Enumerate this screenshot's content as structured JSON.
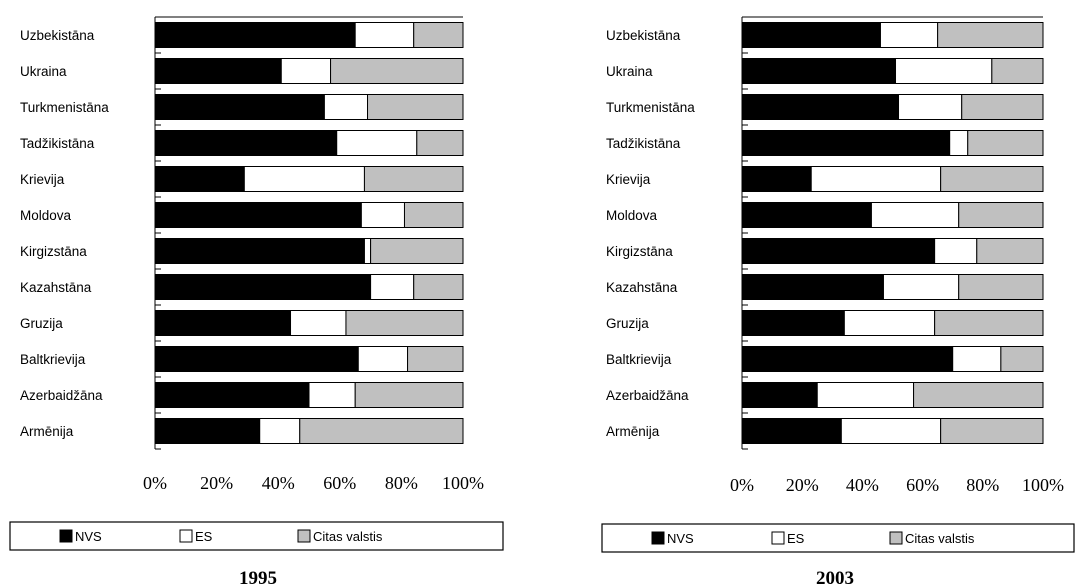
{
  "chart_data": [
    {
      "type": "bar",
      "orientation": "horizontal",
      "stacked": "percent",
      "title": "1995",
      "categories": [
        "Uzbekistāna",
        "Ukraina",
        "Turkmenistāna",
        "Tadžikistāna",
        "Krievija",
        "Moldova",
        "Kirgizstāna",
        "Kazahstāna",
        "Gruzija",
        "Baltkrievija",
        "Azerbaidžāna",
        "Armēnija"
      ],
      "series": [
        {
          "name": "NVS",
          "color": "#000000",
          "values": [
            65,
            41,
            55,
            59,
            29,
            67,
            68,
            70,
            44,
            66,
            50,
            34
          ]
        },
        {
          "name": "ES",
          "color": "#ffffff",
          "values": [
            19,
            16,
            14,
            26,
            39,
            14,
            2,
            14,
            18,
            16,
            15,
            13
          ]
        },
        {
          "name": "Citas valstis",
          "color": "#c0c0c0",
          "values": [
            16,
            43,
            31,
            15,
            32,
            19,
            30,
            16,
            38,
            18,
            35,
            53
          ]
        }
      ],
      "xticks": [
        "0%",
        "20%",
        "40%",
        "60%",
        "80%",
        "100%"
      ],
      "xlim": [
        0,
        100
      ],
      "legend_position": "bottom"
    },
    {
      "type": "bar",
      "orientation": "horizontal",
      "stacked": "percent",
      "title": "2003",
      "categories": [
        "Uzbekistāna",
        "Ukraina",
        "Turkmenistāna",
        "Tadžikistāna",
        "Krievija",
        "Moldova",
        "Kirgizstāna",
        "Kazahstāna",
        "Gruzija",
        "Baltkrievija",
        "Azerbaidžāna",
        "Armēnija"
      ],
      "series": [
        {
          "name": "NVS",
          "color": "#000000",
          "values": [
            46,
            51,
            52,
            69,
            23,
            43,
            64,
            47,
            34,
            70,
            25,
            33
          ]
        },
        {
          "name": "ES",
          "color": "#ffffff",
          "values": [
            19,
            32,
            21,
            6,
            43,
            29,
            14,
            25,
            30,
            16,
            32,
            33
          ]
        },
        {
          "name": "Citas valstis",
          "color": "#c0c0c0",
          "values": [
            35,
            17,
            27,
            25,
            34,
            28,
            22,
            28,
            36,
            14,
            43,
            34
          ]
        }
      ],
      "xticks": [
        "0%",
        "20%",
        "40%",
        "60%",
        "80%",
        "100%"
      ],
      "xlim": [
        0,
        100
      ],
      "legend_position": "bottom"
    }
  ]
}
